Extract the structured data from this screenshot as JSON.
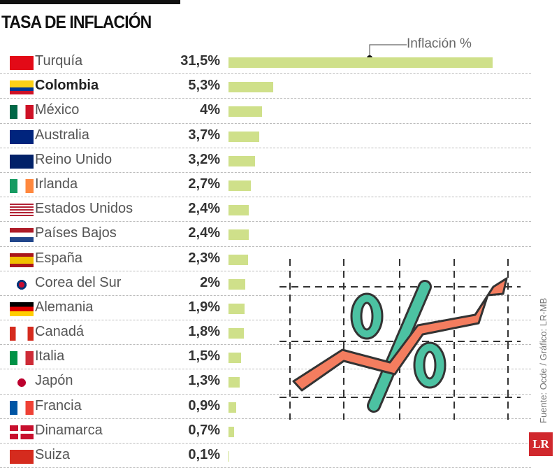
{
  "chart_data": {
    "type": "bar",
    "orientation": "horizontal",
    "title": "TASA DE INFLACIÓN",
    "legend": "Inflación %",
    "bar_color": "#cfe08a",
    "categories": [
      "Turquía",
      "Colombia",
      "México",
      "Australia",
      "Reino Unido",
      "Irlanda",
      "Estados Unidos",
      "Países Bajos",
      "España",
      "Corea del Sur",
      "Alemania",
      "Canadá",
      "Italia",
      "Japón",
      "Francia",
      "Dinamarca",
      "Suiza"
    ],
    "values": [
      31.5,
      5.3,
      4,
      3.7,
      3.2,
      2.7,
      2.4,
      2.4,
      2.3,
      2,
      1.9,
      1.8,
      1.5,
      1.3,
      0.9,
      0.7,
      0.1
    ],
    "labels": [
      "31,5%",
      "5,3%",
      "4%",
      "3,7%",
      "3,2%",
      "2,7%",
      "2,4%",
      "2,4%",
      "2,3%",
      "2%",
      "1,9%",
      "1,8%",
      "1,5%",
      "1,3%",
      "0,9%",
      "0,7%",
      "0,1%"
    ],
    "highlight": "Colombia"
  },
  "source": "Fuente: Ocde / Gráfico: LR-MB",
  "logo": "LR"
}
